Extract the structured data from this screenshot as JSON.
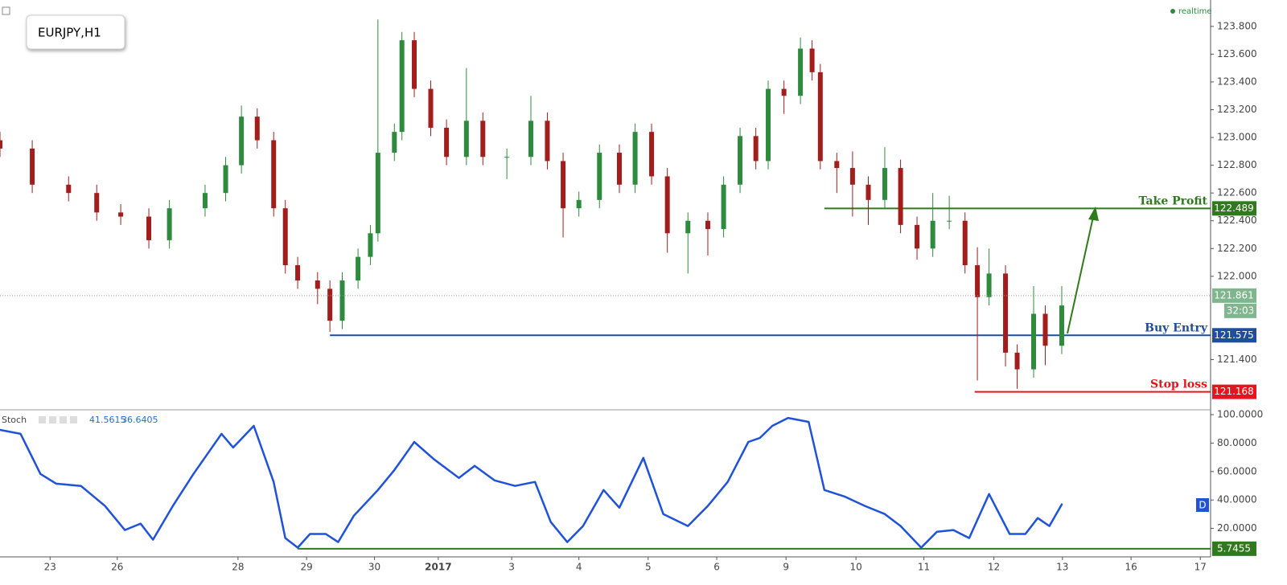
{
  "chart_data": [
    {
      "type": "candlestick",
      "symbol": "EURJPY,H1",
      "status": "realtime",
      "x": [
        -0.73,
        -0.26,
        0.27,
        0.68,
        1.03,
        1.44,
        1.74,
        2.26,
        2.56,
        2.79,
        3.02,
        3.26,
        3.43,
        3.61,
        3.9,
        4.08,
        4.26,
        4.49,
        4.67,
        4.78,
        5.02,
        5.13,
        5.31,
        5.55,
        5.78,
        6.07,
        6.31,
        6.66,
        7.01,
        7.25,
        7.48,
        7.71,
        8.01,
        8.3,
        8.53,
        8.77,
        9.0,
        9.3,
        9.59,
        9.82,
        10.06,
        10.29,
        10.47,
        10.7,
        10.94,
        11.11,
        11.23,
        11.47,
        11.7,
        11.93,
        12.17,
        12.4,
        12.64,
        12.87,
        13.11,
        13.34,
        13.52,
        13.69,
        13.93,
        14.1,
        14.34,
        14.51,
        14.75
      ],
      "open": [
        122.98,
        122.92,
        122.66,
        122.6,
        122.46,
        122.43,
        122.26,
        122.49,
        122.6,
        122.8,
        123.15,
        122.98,
        122.49,
        122.08,
        121.97,
        121.91,
        121.68,
        121.97,
        122.14,
        122.31,
        122.89,
        123.04,
        123.7,
        123.35,
        123.07,
        122.86,
        123.12,
        122.86,
        122.86,
        123.12,
        122.83,
        122.49,
        122.55,
        122.89,
        122.66,
        123.04,
        122.72,
        122.31,
        122.4,
        122.34,
        122.66,
        123.01,
        122.83,
        123.35,
        123.3,
        123.64,
        123.47,
        122.83,
        122.78,
        122.66,
        122.55,
        122.78,
        122.37,
        122.2,
        122.4,
        122.4,
        122.08,
        121.85,
        122.02,
        121.45,
        121.33,
        121.73,
        121.5
      ],
      "high": [
        123.04,
        122.98,
        122.72,
        122.66,
        122.52,
        122.49,
        122.55,
        122.66,
        122.86,
        123.23,
        123.21,
        123.04,
        122.55,
        122.14,
        122.03,
        121.97,
        122.03,
        122.2,
        122.37,
        123.85,
        123.1,
        123.76,
        123.76,
        123.41,
        123.13,
        123.5,
        123.18,
        122.92,
        123.3,
        123.18,
        122.89,
        122.61,
        122.95,
        122.95,
        123.1,
        123.1,
        122.78,
        122.46,
        122.46,
        122.72,
        123.07,
        123.07,
        123.41,
        123.41,
        123.72,
        123.7,
        123.53,
        122.89,
        122.9,
        122.72,
        122.93,
        122.84,
        122.43,
        122.6,
        122.58,
        122.46,
        122.21,
        122.2,
        122.08,
        121.51,
        121.93,
        121.79,
        121.93
      ],
      "low": [
        122.86,
        122.6,
        122.54,
        122.4,
        122.37,
        122.2,
        122.2,
        122.43,
        122.54,
        122.74,
        122.92,
        122.43,
        122.02,
        121.91,
        121.8,
        121.6,
        121.62,
        121.91,
        122.08,
        122.25,
        122.83,
        122.98,
        123.29,
        123.01,
        122.8,
        122.8,
        122.8,
        122.7,
        122.8,
        122.77,
        122.28,
        122.43,
        122.49,
        122.6,
        122.6,
        122.66,
        122.17,
        122.02,
        122.15,
        122.28,
        122.6,
        122.77,
        122.77,
        123.17,
        123.24,
        123.41,
        122.77,
        122.6,
        122.43,
        122.37,
        122.49,
        122.31,
        122.12,
        122.14,
        122.34,
        122.02,
        121.25,
        121.79,
        121.35,
        121.19,
        121.27,
        121.36,
        121.44
      ],
      "close": [
        122.92,
        122.66,
        122.6,
        122.46,
        122.43,
        122.26,
        122.49,
        122.6,
        122.8,
        123.15,
        122.98,
        122.49,
        122.08,
        121.97,
        121.91,
        121.68,
        121.97,
        122.14,
        122.31,
        122.89,
        123.04,
        123.7,
        123.35,
        123.07,
        122.86,
        123.12,
        122.86,
        122.86,
        123.12,
        122.83,
        122.49,
        122.55,
        122.89,
        122.66,
        123.04,
        122.72,
        122.31,
        122.4,
        122.34,
        122.66,
        123.01,
        122.83,
        123.35,
        123.3,
        123.64,
        123.47,
        122.83,
        122.78,
        122.66,
        122.55,
        122.78,
        122.37,
        122.2,
        122.4,
        122.4,
        122.08,
        121.85,
        122.02,
        121.45,
        121.33,
        121.73,
        121.5,
        121.79
      ],
      "up_color": "#2e8b3e",
      "down_color": "#a31d1d",
      "xlim": [
        -0.73,
        16.92
      ],
      "ylim": [
        121.05,
        123.99
      ],
      "yticks": [
        {
          "value": 123.8,
          "label": "123.800"
        },
        {
          "value": 123.6,
          "label": "123.600"
        },
        {
          "value": 123.4,
          "label": "123.400"
        },
        {
          "value": 123.2,
          "label": "123.200"
        },
        {
          "value": 123.0,
          "label": "123.000"
        },
        {
          "value": 122.8,
          "label": "122.800"
        },
        {
          "value": 122.6,
          "label": "122.600"
        },
        {
          "value": 122.4,
          "label": "122.400"
        },
        {
          "value": 122.2,
          "label": "122.200"
        },
        {
          "value": 122.0,
          "label": "122.000"
        },
        {
          "value": 121.4,
          "label": "121.400"
        }
      ],
      "xticks": [
        {
          "value": 0,
          "label": "23"
        },
        {
          "value": 0.98,
          "label": "26"
        },
        {
          "value": 2.74,
          "label": "28"
        },
        {
          "value": 3.74,
          "label": "29"
        },
        {
          "value": 4.73,
          "label": "30"
        },
        {
          "value": 5.66,
          "label": "2017"
        },
        {
          "value": 6.73,
          "label": "3"
        },
        {
          "value": 7.71,
          "label": "4"
        },
        {
          "value": 8.72,
          "label": "5"
        },
        {
          "value": 9.72,
          "label": "6"
        },
        {
          "value": 10.73,
          "label": "9"
        },
        {
          "value": 11.75,
          "label": "10"
        },
        {
          "value": 12.74,
          "label": "11"
        },
        {
          "value": 13.76,
          "label": "12"
        },
        {
          "value": 14.76,
          "label": "13"
        },
        {
          "value": 15.76,
          "label": "16"
        },
        {
          "value": 16.77,
          "label": "17"
        }
      ],
      "levels": [
        {
          "name": "Take Profit",
          "value": 122.489,
          "x_start": 11.29,
          "color": "#2f7a1c"
        },
        {
          "name": "Buy Entry",
          "value": 121.575,
          "x_start": 4.08,
          "color": "#1f4e9c"
        },
        {
          "name": "Stop loss",
          "value": 121.168,
          "x_start": 13.48,
          "color": "#e8141c"
        }
      ],
      "current": {
        "value": 121.861,
        "countdown": "32:03",
        "color": "#7fb68e"
      }
    },
    {
      "type": "line",
      "name": "Stoch",
      "readouts": [
        41.5615,
        36.6405
      ],
      "badge": "D",
      "color": "#1f52d8",
      "x": [
        -0.73,
        -0.43,
        -0.14,
        0.09,
        0.45,
        0.8,
        1.09,
        1.32,
        1.5,
        1.79,
        2.09,
        2.5,
        2.67,
        2.97,
        3.26,
        3.43,
        3.61,
        3.79,
        4.02,
        4.2,
        4.43,
        4.78,
        5.02,
        5.31,
        5.6,
        5.96,
        6.19,
        6.48,
        6.78,
        7.07,
        7.3,
        7.54,
        7.77,
        8.07,
        8.3,
        8.65,
        8.94,
        9.3,
        9.59,
        9.88,
        10.18,
        10.35,
        10.53,
        10.76,
        11.06,
        11.29,
        11.58,
        11.88,
        12.17,
        12.4,
        12.7,
        12.93,
        13.17,
        13.4,
        13.69,
        13.99,
        14.22,
        14.4,
        14.57,
        14.75
      ],
      "values": [
        89.3,
        86.5,
        58.3,
        51.5,
        49.9,
        35.8,
        18.9,
        23.4,
        12.1,
        35.8,
        58.3,
        86.5,
        76.9,
        92.1,
        52.7,
        13.2,
        6.5,
        16.1,
        16.1,
        10.4,
        29.0,
        47.0,
        61.1,
        80.8,
        68.5,
        55.5,
        64.0,
        53.8,
        49.9,
        52.7,
        24.5,
        10.4,
        21.7,
        47.0,
        34.6,
        69.6,
        30.1,
        21.7,
        35.8,
        52.7,
        80.8,
        83.7,
        92.1,
        97.7,
        94.9,
        47.0,
        42.5,
        35.8,
        30.1,
        21.7,
        6.5,
        17.7,
        18.9,
        13.2,
        44.2,
        16.1,
        16.1,
        27.3,
        21.7,
        36.9
      ],
      "xlim": [
        -0.73,
        16.92
      ],
      "ylim": [
        0,
        103.4
      ],
      "yticks": [
        {
          "value": 100,
          "label": "100.0000"
        },
        {
          "value": 80,
          "label": "80.0000"
        },
        {
          "value": 60,
          "label": "60.0000"
        },
        {
          "value": 40,
          "label": "40.0000"
        },
        {
          "value": 20,
          "label": "20.0000"
        }
      ],
      "level": {
        "value": 5.7455,
        "x_start": 3.61,
        "color": "#2f7a1c"
      }
    }
  ]
}
